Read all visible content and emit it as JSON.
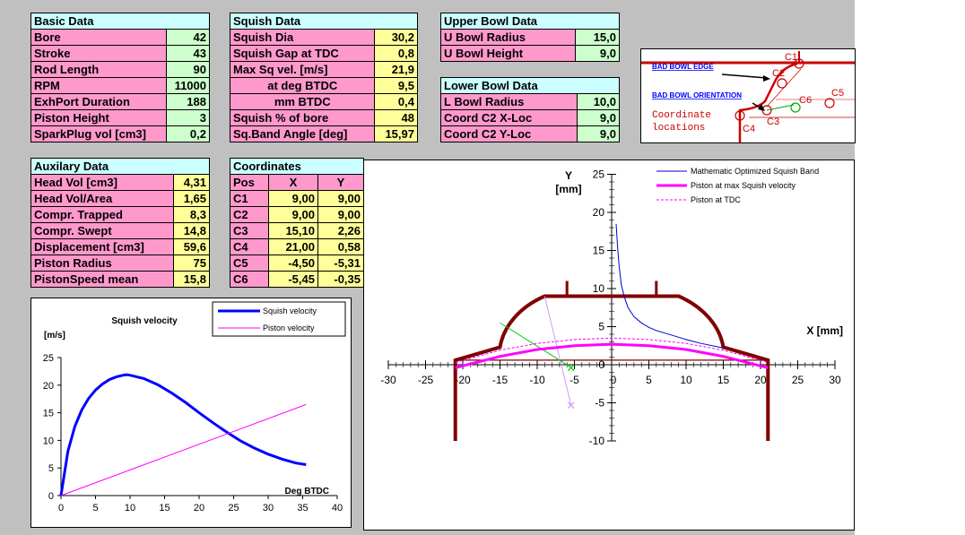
{
  "basic": {
    "title": "Basic Data",
    "rows": [
      {
        "label": "Bore",
        "value": "42"
      },
      {
        "label": "Stroke",
        "value": "43"
      },
      {
        "label": "Rod Length",
        "value": "90"
      },
      {
        "label": "RPM",
        "value": "11000"
      },
      {
        "label": "ExhPort Duration",
        "value": "188"
      },
      {
        "label": "Piston Height",
        "value": "3"
      },
      {
        "label": "SparkPlug vol [cm3]",
        "value": "0,2"
      }
    ]
  },
  "squish": {
    "title": "Squish Data",
    "rows": [
      {
        "label": "Squish Dia",
        "value": "30,2"
      },
      {
        "label": "Squish Gap at TDC",
        "value": "0,8"
      },
      {
        "label": "Max Sq vel. [m/s]",
        "value": "21,9"
      },
      {
        "label": "at deg BTDC",
        "value": "9,5"
      },
      {
        "label": "mm BTDC",
        "value": "0,4"
      },
      {
        "label": "Squish % of bore",
        "value": "48"
      },
      {
        "label": "Sq.Band Angle [deg]",
        "value": "15,97"
      }
    ]
  },
  "upper_bowl": {
    "title": "Upper Bowl Data",
    "rows": [
      {
        "label": "U Bowl Radius",
        "value": "15,0"
      },
      {
        "label": "U Bowl Height",
        "value": "9,0"
      }
    ]
  },
  "lower_bowl": {
    "title": "Lower Bowl Data",
    "rows": [
      {
        "label": "L Bowl Radius",
        "value": "10,0"
      },
      {
        "label": "Coord C2 X-Loc",
        "value": "9,0"
      },
      {
        "label": "Coord C2 Y-Loc",
        "value": "9,0"
      }
    ]
  },
  "auxiliary": {
    "title": "Auxilary Data",
    "rows": [
      {
        "label": "Head Vol [cm3]",
        "value": "4,31"
      },
      {
        "label": "Head Vol/Area",
        "value": "1,65"
      },
      {
        "label": "Compr. Trapped",
        "value": "8,3"
      },
      {
        "label": "Compr. Swept",
        "value": "14,8"
      },
      {
        "label": "Displacement [cm3]",
        "value": "59,6"
      },
      {
        "label": "Piston Radius",
        "value": "75"
      },
      {
        "label": "PistonSpeed mean",
        "value": "15,8"
      }
    ]
  },
  "coordinates": {
    "title": "Coordinates",
    "headers": [
      "Pos",
      "X",
      "Y"
    ],
    "rows": [
      {
        "pos": "C1",
        "x": "9,00",
        "y": "9,00"
      },
      {
        "pos": "C2",
        "x": "9,00",
        "y": "9,00"
      },
      {
        "pos": "C3",
        "x": "15,10",
        "y": "2,26"
      },
      {
        "pos": "C4",
        "x": "21,00",
        "y": "0,58"
      },
      {
        "pos": "C5",
        "x": "-4,50",
        "y": "-5,31"
      },
      {
        "pos": "C6",
        "x": "-5,45",
        "y": "-0,35"
      }
    ]
  },
  "diagram": {
    "bad_bowl_edge": "BAD BOWL EDGE",
    "bad_bowl_orientation": "BAD BOWL ORIENTATION",
    "coord_line1": "Coordinate",
    "coord_line2": "locations",
    "labels": [
      "C1",
      "C2",
      "C3",
      "C4",
      "C5",
      "C6"
    ]
  },
  "chart_data": [
    {
      "type": "line",
      "title": "Squish velocity",
      "ylabel": "[m/s]",
      "xlabel": "Deg BTDC",
      "xlim": [
        0,
        40
      ],
      "ylim": [
        0,
        25
      ],
      "xticks": [
        0,
        5,
        10,
        15,
        20,
        25,
        30,
        35,
        40
      ],
      "yticks": [
        0,
        5,
        10,
        15,
        20,
        25
      ],
      "legend_position": "top-right",
      "series": [
        {
          "name": "Squish velocity",
          "color": "#0000ff",
          "x": [
            0,
            1,
            2,
            3,
            4,
            5,
            6,
            7,
            8,
            9,
            9.5,
            10,
            12,
            14,
            16,
            18,
            20,
            22,
            24,
            26,
            28,
            30,
            32,
            34,
            35.5
          ],
          "y": [
            0,
            8,
            12.5,
            15.5,
            17.6,
            19.1,
            20.2,
            21,
            21.5,
            21.8,
            21.9,
            21.8,
            21.2,
            20.1,
            18.6,
            16.9,
            15,
            13.2,
            11.5,
            9.9,
            8.6,
            7.5,
            6.6,
            5.9,
            5.6
          ]
        },
        {
          "name": "Piston velocity",
          "color": "#ff00ff",
          "x": [
            0,
            35.5
          ],
          "y": [
            0,
            16.5
          ]
        }
      ]
    },
    {
      "type": "line",
      "ylabel": "Y\n[mm]",
      "xlabel": "X  [mm]",
      "xlim": [
        -30,
        30
      ],
      "ylim": [
        -10,
        25
      ],
      "xticks": [
        -30,
        -25,
        -20,
        -15,
        -10,
        -5,
        0,
        5,
        10,
        15,
        20,
        25,
        30
      ],
      "yticks": [
        -10,
        -5,
        0,
        5,
        10,
        15,
        20,
        25
      ],
      "legend_position": "top-right",
      "series": [
        {
          "name": "Mathematic Optimized Squish Band",
          "color": "#0000cc",
          "x": [
            0.6,
            0.8,
            1.0,
            1.3,
            1.7,
            2.2,
            3,
            4,
            5,
            6,
            8,
            10,
            12,
            15
          ],
          "y": [
            18.5,
            15.5,
            13,
            10.5,
            8.9,
            7.5,
            6.3,
            5.5,
            4.9,
            4.5,
            3.9,
            3.3,
            2.8,
            2.2
          ]
        },
        {
          "name": "Piston at max Squish velocity",
          "color": "#ff00ff",
          "x": [
            -21,
            -15,
            -10,
            -5,
            0,
            5,
            10,
            15,
            21
          ],
          "y": [
            -0.4,
            1.1,
            2.0,
            2.5,
            2.7,
            2.5,
            2.0,
            1.1,
            -0.4
          ]
        },
        {
          "name": "Piston at TDC",
          "color": "#ff00ff",
          "x": [
            -21,
            -15,
            -10,
            -5,
            0,
            5,
            10,
            15,
            21
          ],
          "y": [
            0.3,
            1.9,
            2.8,
            3.3,
            3.5,
            3.3,
            2.8,
            1.9,
            0.3
          ]
        }
      ]
    }
  ]
}
